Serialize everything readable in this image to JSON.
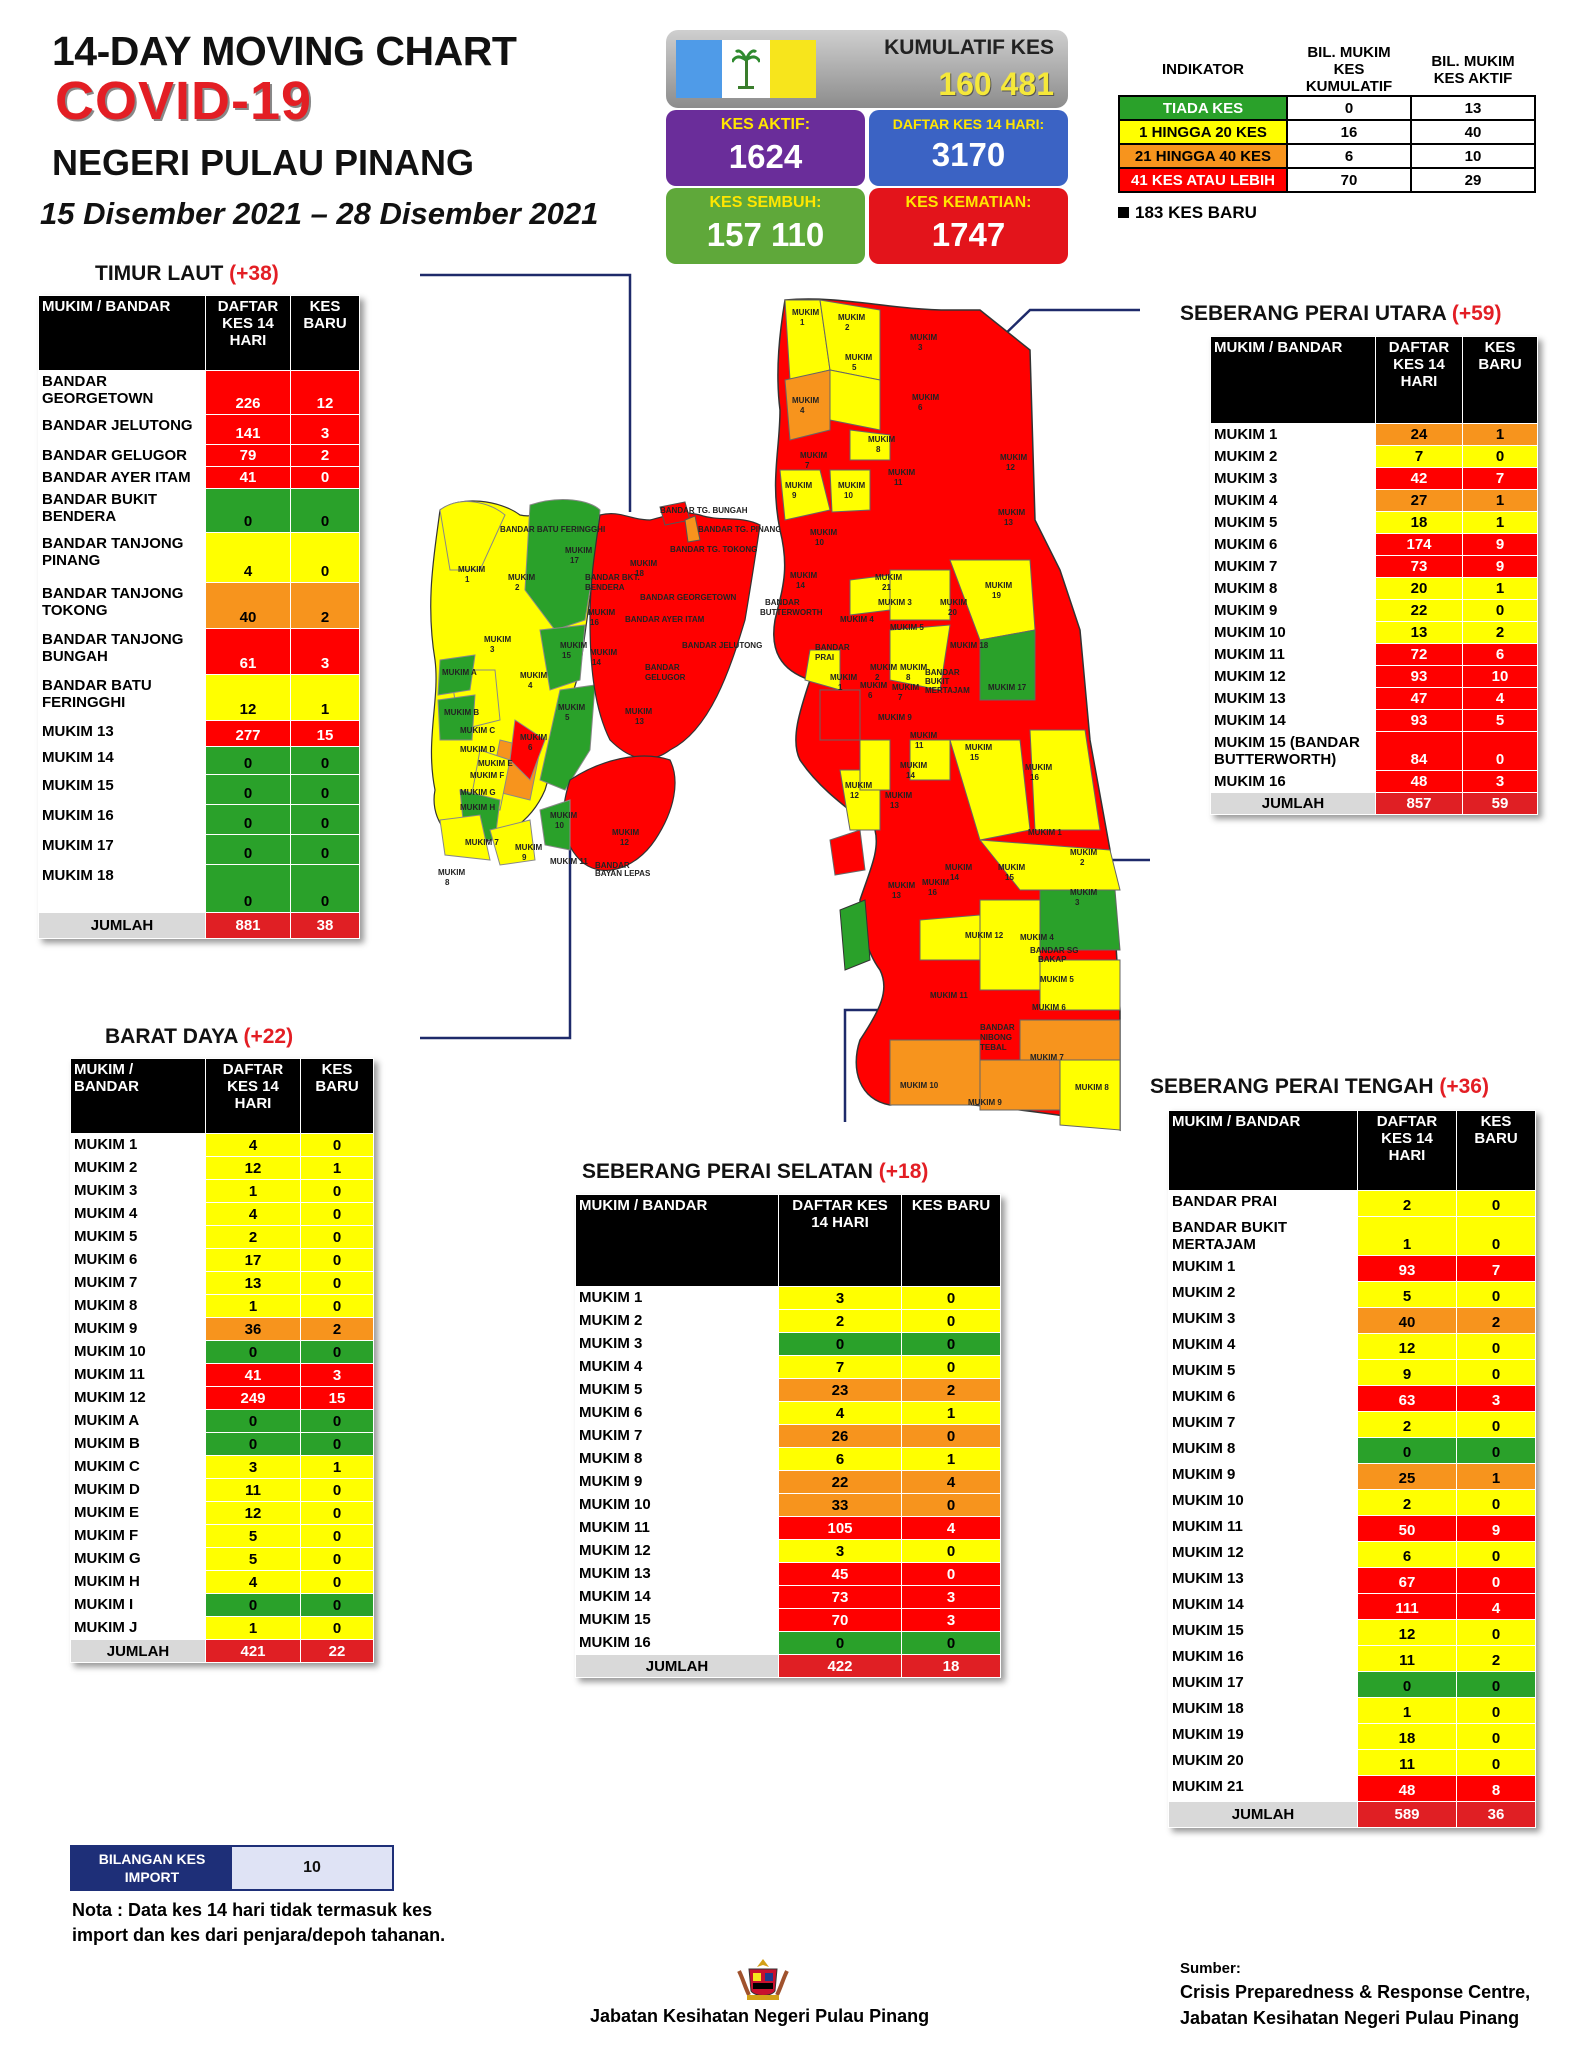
{
  "header": {
    "line1": "14-DAY MOVING CHART",
    "line2": "COVID-19",
    "line3": "NEGERI PULAU PINANG",
    "dates": "15 Disember 2021 – 28 Disember 2021"
  },
  "stats": {
    "cumulative_label": "KUMULATIF KES",
    "cumulative_value": "160 481",
    "active_label": "KES AKTIF:",
    "active_value": "1624",
    "list14_label": "DAFTAR KES 14 HARI:",
    "list14_value": "3170",
    "recovered_label": "KES SEMBUH:",
    "recovered_value": "157 110",
    "deaths_label": "KES KEMATIAN:",
    "deaths_value": "1747",
    "colors": {
      "active": "#6a2d9a",
      "list14": "#3b63c4",
      "recovered": "#5fa83a",
      "deaths": "#e3141b"
    }
  },
  "indicator": {
    "col_indicator": "INDIKATOR",
    "col_cumulative": "BIL. MUKIM KES KUMULATIF",
    "col_active": "BIL. MUKIM KES AKTIF",
    "rows": [
      {
        "label": "TIADA KES",
        "cumulative": "0",
        "active": "13",
        "color": "#2aa12a",
        "text": "#fff"
      },
      {
        "label": "1 HINGGA 20 KES",
        "cumulative": "16",
        "active": "40",
        "color": "#ffff00",
        "text": "#000"
      },
      {
        "label": "21 HINGGA 40 KES",
        "cumulative": "6",
        "active": "10",
        "color": "#f7941d",
        "text": "#000"
      },
      {
        "label": "41 KES ATAU LEBIH",
        "cumulative": "70",
        "active": "29",
        "color": "#ff0000",
        "text": "#fff"
      }
    ],
    "new_cases": "183 KES BARU"
  },
  "timur_laut": {
    "title": "TIMUR LAUT",
    "delta": "(+38)",
    "headers": [
      "MUKIM / BANDAR",
      "DAFTAR KES 14 HARI",
      "KES BARU"
    ],
    "rows": [
      {
        "n": "BANDAR GEORGETOWN",
        "a": "226",
        "b": "12",
        "c": "red",
        "h": 44
      },
      {
        "n": "BANDAR JELUTONG",
        "a": "141",
        "b": "3",
        "c": "red",
        "h": 30
      },
      {
        "n": "BANDAR GELUGOR",
        "a": "79",
        "b": "2",
        "c": "red",
        "h": 22
      },
      {
        "n": "BANDAR AYER ITAM",
        "a": "41",
        "b": "0",
        "c": "red",
        "h": 22
      },
      {
        "n": "BANDAR BUKIT BENDERA",
        "a": "0",
        "b": "0",
        "c": "grn",
        "h": 44
      },
      {
        "n": "BANDAR TANJONG PINANG",
        "a": "4",
        "b": "0",
        "c": "yel",
        "h": 50
      },
      {
        "n": "BANDAR TANJONG TOKONG",
        "a": "40",
        "b": "2",
        "c": "org",
        "h": 46
      },
      {
        "n": "BANDAR TANJONG BUNGAH",
        "a": "61",
        "b": "3",
        "c": "red",
        "h": 46
      },
      {
        "n": "BANDAR BATU FERINGGHI",
        "a": "12",
        "b": "1",
        "c": "yel",
        "h": 46
      },
      {
        "n": "MUKIM 13",
        "a": "277",
        "b": "15",
        "c": "red",
        "h": 26
      },
      {
        "n": "MUKIM 14",
        "a": "0",
        "b": "0",
        "c": "grn",
        "h": 28
      },
      {
        "n": "MUKIM 15",
        "a": "0",
        "b": "0",
        "c": "grn",
        "h": 30
      },
      {
        "n": "MUKIM 16",
        "a": "0",
        "b": "0",
        "c": "grn",
        "h": 30
      },
      {
        "n": "MUKIM 17",
        "a": "0",
        "b": "0",
        "c": "grn",
        "h": 30
      },
      {
        "n": "MUKIM 18",
        "a": "0",
        "b": "0",
        "c": "grn",
        "h": 48
      }
    ],
    "total": {
      "n": "JUMLAH",
      "a": "881",
      "b": "38"
    }
  },
  "barat_daya": {
    "title": "BARAT DAYA",
    "delta": "(+22)",
    "headers": [
      "MUKIM / BANDAR",
      "DAFTAR KES 14 HARI",
      "KES BARU"
    ],
    "rows": [
      {
        "n": "MUKIM 1",
        "a": "4",
        "b": "0",
        "c": "yel"
      },
      {
        "n": "MUKIM 2",
        "a": "12",
        "b": "1",
        "c": "yel"
      },
      {
        "n": "MUKIM 3",
        "a": "1",
        "b": "0",
        "c": "yel"
      },
      {
        "n": "MUKIM 4",
        "a": "4",
        "b": "0",
        "c": "yel"
      },
      {
        "n": "MUKIM 5",
        "a": "2",
        "b": "0",
        "c": "yel"
      },
      {
        "n": "MUKIM 6",
        "a": "17",
        "b": "0",
        "c": "yel"
      },
      {
        "n": "MUKIM 7",
        "a": "13",
        "b": "0",
        "c": "yel"
      },
      {
        "n": "MUKIM 8",
        "a": "1",
        "b": "0",
        "c": "yel"
      },
      {
        "n": "MUKIM 9",
        "a": "36",
        "b": "2",
        "c": "org"
      },
      {
        "n": "MUKIM 10",
        "a": "0",
        "b": "0",
        "c": "grn"
      },
      {
        "n": "MUKIM 11",
        "a": "41",
        "b": "3",
        "c": "red"
      },
      {
        "n": "MUKIM 12",
        "a": "249",
        "b": "15",
        "c": "red"
      },
      {
        "n": "MUKIM A",
        "a": "0",
        "b": "0",
        "c": "grn"
      },
      {
        "n": "MUKIM B",
        "a": "0",
        "b": "0",
        "c": "grn"
      },
      {
        "n": "MUKIM C",
        "a": "3",
        "b": "1",
        "c": "yel"
      },
      {
        "n": "MUKIM D",
        "a": "11",
        "b": "0",
        "c": "yel"
      },
      {
        "n": "MUKIM E",
        "a": "12",
        "b": "0",
        "c": "yel"
      },
      {
        "n": "MUKIM F",
        "a": "5",
        "b": "0",
        "c": "yel"
      },
      {
        "n": "MUKIM G",
        "a": "5",
        "b": "0",
        "c": "yel"
      },
      {
        "n": "MUKIM H",
        "a": "4",
        "b": "0",
        "c": "yel"
      },
      {
        "n": "MUKIM I",
        "a": "0",
        "b": "0",
        "c": "grn"
      },
      {
        "n": "MUKIM J",
        "a": "1",
        "b": "0",
        "c": "yel"
      }
    ],
    "total": {
      "n": "JUMLAH",
      "a": "421",
      "b": "22"
    }
  },
  "sp_utara": {
    "title": "SEBERANG PERAI UTARA",
    "delta": "(+59)",
    "headers": [
      "MUKIM / BANDAR",
      "DAFTAR KES 14 HARI",
      "KES BARU"
    ],
    "rows": [
      {
        "n": "MUKIM 1",
        "a": "24",
        "b": "1",
        "c": "org"
      },
      {
        "n": "MUKIM 2",
        "a": "7",
        "b": "0",
        "c": "yel"
      },
      {
        "n": "MUKIM 3",
        "a": "42",
        "b": "7",
        "c": "red"
      },
      {
        "n": "MUKIM 4",
        "a": "27",
        "b": "1",
        "c": "org"
      },
      {
        "n": "MUKIM 5",
        "a": "18",
        "b": "1",
        "c": "yel"
      },
      {
        "n": "MUKIM 6",
        "a": "174",
        "b": "9",
        "c": "red"
      },
      {
        "n": "MUKIM 7",
        "a": "73",
        "b": "9",
        "c": "red"
      },
      {
        "n": "MUKIM 8",
        "a": "20",
        "b": "1",
        "c": "yel"
      },
      {
        "n": "MUKIM 9",
        "a": "22",
        "b": "0",
        "c": "yel"
      },
      {
        "n": "MUKIM 10",
        "a": "13",
        "b": "2",
        "c": "yel"
      },
      {
        "n": "MUKIM 11",
        "a": "72",
        "b": "6",
        "c": "red"
      },
      {
        "n": "MUKIM 12",
        "a": "93",
        "b": "10",
        "c": "red"
      },
      {
        "n": "MUKIM 13",
        "a": "47",
        "b": "4",
        "c": "red"
      },
      {
        "n": "MUKIM 14",
        "a": "93",
        "b": "5",
        "c": "red"
      },
      {
        "n": "MUKIM 15 (BANDAR BUTTERWORTH)",
        "a": "84",
        "b": "0",
        "c": "red"
      },
      {
        "n": "MUKIM 16",
        "a": "48",
        "b": "3",
        "c": "red"
      }
    ],
    "total": {
      "n": "JUMLAH",
      "a": "857",
      "b": "59"
    }
  },
  "sp_selatan": {
    "title": "SEBERANG PERAI SELATAN",
    "delta": "(+18)",
    "headers": [
      "MUKIM / BANDAR",
      "DAFTAR KES 14 HARI",
      "KES BARU"
    ],
    "rows": [
      {
        "n": "MUKIM 1",
        "a": "3",
        "b": "0",
        "c": "yel"
      },
      {
        "n": "MUKIM 2",
        "a": "2",
        "b": "0",
        "c": "yel"
      },
      {
        "n": "MUKIM 3",
        "a": "0",
        "b": "0",
        "c": "grn"
      },
      {
        "n": "MUKIM 4",
        "a": "7",
        "b": "0",
        "c": "yel"
      },
      {
        "n": "MUKIM 5",
        "a": "23",
        "b": "2",
        "c": "org"
      },
      {
        "n": "MUKIM 6",
        "a": "4",
        "b": "1",
        "c": "yel"
      },
      {
        "n": "MUKIM 7",
        "a": "26",
        "b": "0",
        "c": "org"
      },
      {
        "n": "MUKIM 8",
        "a": "6",
        "b": "1",
        "c": "yel"
      },
      {
        "n": "MUKIM 9",
        "a": "22",
        "b": "4",
        "c": "org"
      },
      {
        "n": "MUKIM 10",
        "a": "33",
        "b": "0",
        "c": "org"
      },
      {
        "n": "MUKIM 11",
        "a": "105",
        "b": "4",
        "c": "red"
      },
      {
        "n": "MUKIM 12",
        "a": "3",
        "b": "0",
        "c": "yel"
      },
      {
        "n": "MUKIM 13",
        "a": "45",
        "b": "0",
        "c": "red"
      },
      {
        "n": "MUKIM 14",
        "a": "73",
        "b": "3",
        "c": "red"
      },
      {
        "n": "MUKIM 15",
        "a": "70",
        "b": "3",
        "c": "red"
      },
      {
        "n": "MUKIM 16",
        "a": "0",
        "b": "0",
        "c": "grn"
      }
    ],
    "total": {
      "n": "JUMLAH",
      "a": "422",
      "b": "18"
    }
  },
  "sp_tengah": {
    "title": "SEBERANG PERAI TENGAH",
    "delta": "(+36)",
    "headers": [
      "MUKIM / BANDAR",
      "DAFTAR KES 14 HARI",
      "KES BARU"
    ],
    "rows": [
      {
        "n": "BANDAR PRAI",
        "a": "2",
        "b": "0",
        "c": "yel"
      },
      {
        "n": "BANDAR BUKIT MERTAJAM",
        "a": "1",
        "b": "0",
        "c": "yel"
      },
      {
        "n": "MUKIM 1",
        "a": "93",
        "b": "7",
        "c": "red"
      },
      {
        "n": "MUKIM 2",
        "a": "5",
        "b": "0",
        "c": "yel"
      },
      {
        "n": "MUKIM 3",
        "a": "40",
        "b": "2",
        "c": "org"
      },
      {
        "n": "MUKIM 4",
        "a": "12",
        "b": "0",
        "c": "yel"
      },
      {
        "n": "MUKIM 5",
        "a": "9",
        "b": "0",
        "c": "yel"
      },
      {
        "n": "MUKIM 6",
        "a": "63",
        "b": "3",
        "c": "red"
      },
      {
        "n": "MUKIM 7",
        "a": "2",
        "b": "0",
        "c": "yel"
      },
      {
        "n": "MUKIM 8",
        "a": "0",
        "b": "0",
        "c": "grn"
      },
      {
        "n": "MUKIM 9",
        "a": "25",
        "b": "1",
        "c": "org"
      },
      {
        "n": "MUKIM 10",
        "a": "2",
        "b": "0",
        "c": "yel"
      },
      {
        "n": "MUKIM 11",
        "a": "50",
        "b": "9",
        "c": "red"
      },
      {
        "n": "MUKIM 12",
        "a": "6",
        "b": "0",
        "c": "yel"
      },
      {
        "n": "MUKIM 13",
        "a": "67",
        "b": "0",
        "c": "red"
      },
      {
        "n": "MUKIM 14",
        "a": "111",
        "b": "4",
        "c": "red"
      },
      {
        "n": "MUKIM 15",
        "a": "12",
        "b": "0",
        "c": "yel"
      },
      {
        "n": "MUKIM 16",
        "a": "11",
        "b": "2",
        "c": "yel"
      },
      {
        "n": "MUKIM 17",
        "a": "0",
        "b": "0",
        "c": "grn"
      },
      {
        "n": "MUKIM 18",
        "a": "1",
        "b": "0",
        "c": "yel"
      },
      {
        "n": "MUKIM 19",
        "a": "18",
        "b": "0",
        "c": "yel"
      },
      {
        "n": "MUKIM 20",
        "a": "11",
        "b": "0",
        "c": "yel"
      },
      {
        "n": "MUKIM 21",
        "a": "48",
        "b": "8",
        "c": "red"
      }
    ],
    "total": {
      "n": "JUMLAH",
      "a": "589",
      "b": "36"
    }
  },
  "map_labels": {
    "island": [
      "BANDAR BATU FERINGGHI",
      "BANDAR TG. BUNGAH",
      "BANDAR TG. PINANG",
      "BANDAR TG. TOKONG",
      "BANDAR BKT. BENDERA",
      "BANDAR GEORGETOWN",
      "BANDAR AYER ITAM",
      "BANDAR JELUTONG",
      "BANDAR GELUGOR",
      "MUKIM 13",
      "MUKIM 12",
      "MUKIM 17",
      "MUKIM 18",
      "MUKIM 16",
      "MUKIM 15",
      "MUKIM 14",
      "MUKIM 1",
      "MUKIM 2",
      "MUKIM 3",
      "MUKIM 4",
      "MUKIM 5",
      "MUKIM 6",
      "MUKIM 7",
      "MUKIM 8",
      "MUKIM 9",
      "MUKIM 10",
      "MUKIM 11",
      "MUKIM A",
      "MUKIM B",
      "MUKIM C",
      "MUKIM D",
      "MUKIM E",
      "MUKIM F",
      "MUKIM G",
      "MUKIM H",
      "BANDAR BAYAN LEPAS"
    ],
    "mainland": [
      "MUKIM 1",
      "MUKIM 2",
      "MUKIM 3",
      "MUKIM 4",
      "MUKIM 5",
      "MUKIM 6",
      "MUKIM 7",
      "MUKIM 8",
      "MUKIM 9",
      "MUKIM 10",
      "MUKIM 11",
      "MUKIM 12",
      "MUKIM 13",
      "MUKIM 14",
      "MUKIM 16",
      "BANDAR BUTTERWORTH",
      "BANDAR PRAI",
      "MUKIM 19",
      "MUKIM 20",
      "MUKIM 18",
      "MUKIM 17",
      "MUKIM 21",
      "BANDAR BUKIT MERTAJAM",
      "MUKIM 15",
      "BANDAR SG BAKAP",
      "BANDAR NIBONG TEBAL"
    ]
  },
  "import_box": {
    "label": "BILANGAN KES IMPORT",
    "value": "10"
  },
  "note": "Nota : Data kes 14 hari tidak termasuk kes import dan kes dari penjara/depoh tahanan.",
  "footer": {
    "dept": "Jabatan Kesihatan Negeri Pulau Pinang",
    "source_label": "Sumber:",
    "source1": "Crisis Preparedness & Response Centre,",
    "source2": "Jabatan Kesihatan Negeri Pulau Pinang"
  }
}
